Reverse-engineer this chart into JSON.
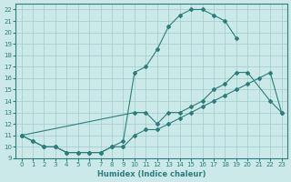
{
  "xlabel": "Humidex (Indice chaleur)",
  "bg_color": "#cce9e9",
  "grid_color": "#a0cccc",
  "line_color": "#2d7d7d",
  "xlim": [
    -0.5,
    23.5
  ],
  "ylim": [
    9,
    22.5
  ],
  "xticks": [
    0,
    1,
    2,
    3,
    4,
    5,
    6,
    7,
    8,
    9,
    10,
    11,
    12,
    13,
    14,
    15,
    16,
    17,
    18,
    19,
    20,
    21,
    22,
    23
  ],
  "yticks": [
    9,
    10,
    11,
    12,
    13,
    14,
    15,
    16,
    17,
    18,
    19,
    20,
    21,
    22
  ],
  "line1_x": [
    0,
    1,
    2,
    3,
    4,
    5,
    6,
    7,
    8,
    9,
    10,
    11,
    12,
    13,
    14,
    15,
    16,
    17,
    18,
    19
  ],
  "line1_y": [
    11,
    10.5,
    10,
    10,
    9.5,
    9.5,
    9.5,
    9.5,
    10,
    10.5,
    16.5,
    17,
    18.5,
    20.5,
    21.5,
    22,
    22,
    21.5,
    21,
    19.5
  ],
  "line2_x": [
    0,
    10,
    11,
    12,
    13,
    14,
    15,
    16,
    17,
    18,
    19,
    20,
    22,
    23
  ],
  "line2_y": [
    11,
    13,
    13,
    12,
    13,
    13,
    13.5,
    14,
    15,
    15.5,
    16.5,
    16.5,
    14,
    13
  ],
  "line3_x": [
    0,
    1,
    2,
    3,
    4,
    5,
    6,
    7,
    8,
    9,
    10,
    11,
    12,
    13,
    14,
    15,
    16,
    17,
    18,
    19,
    20,
    21,
    22,
    23
  ],
  "line3_y": [
    11,
    10.5,
    10,
    10,
    9.5,
    9.5,
    9.5,
    9.5,
    10,
    10,
    11,
    11.5,
    11.5,
    12,
    12.5,
    13,
    13.5,
    14,
    14.5,
    15,
    15.5,
    16,
    16.5,
    13
  ],
  "xlabel_fontsize": 6,
  "tick_fontsize": 5
}
